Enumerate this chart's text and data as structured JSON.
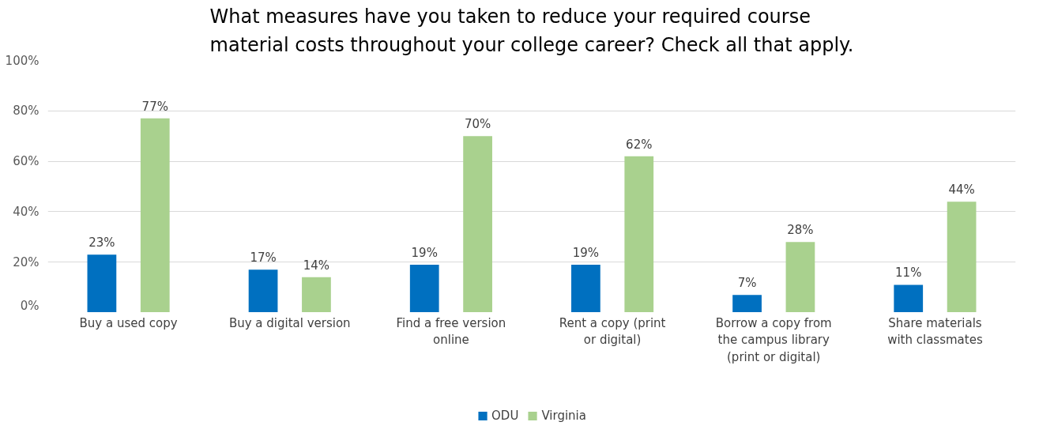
{
  "chart_data": {
    "type": "bar",
    "title": "What measures have you taken to reduce your required course\nmaterial costs throughout your college career? Check all that apply.",
    "categories": [
      "Buy a used copy",
      "Buy a digital version",
      "Find a free version\nonline",
      "Rent a copy (print\nor digital)",
      "Borrow a copy from\nthe campus library\n(print or digital)",
      "Share materials\nwith classmates"
    ],
    "series": [
      {
        "name": "ODU",
        "color": "#0070c0",
        "values": [
          23,
          17,
          19,
          19,
          7,
          11
        ],
        "value_labels": [
          "23%",
          "17%",
          "19%",
          "19%",
          "7%",
          "11%"
        ]
      },
      {
        "name": "Virginia",
        "color": "#a9d18e",
        "values": [
          77,
          14,
          70,
          62,
          28,
          44
        ],
        "value_labels": [
          "77%",
          "14%",
          "70%",
          "62%",
          "28%",
          "44%"
        ]
      }
    ],
    "ylim": [
      0,
      100
    ],
    "yticks": [
      {
        "value": 0,
        "label": "0%"
      },
      {
        "value": 20,
        "label": "20%"
      },
      {
        "value": 40,
        "label": "40%"
      },
      {
        "value": 60,
        "label": "60%"
      },
      {
        "value": 80,
        "label": "80%"
      },
      {
        "value": 100,
        "label": "100%"
      }
    ],
    "grid": "y",
    "legend": "bottom"
  }
}
